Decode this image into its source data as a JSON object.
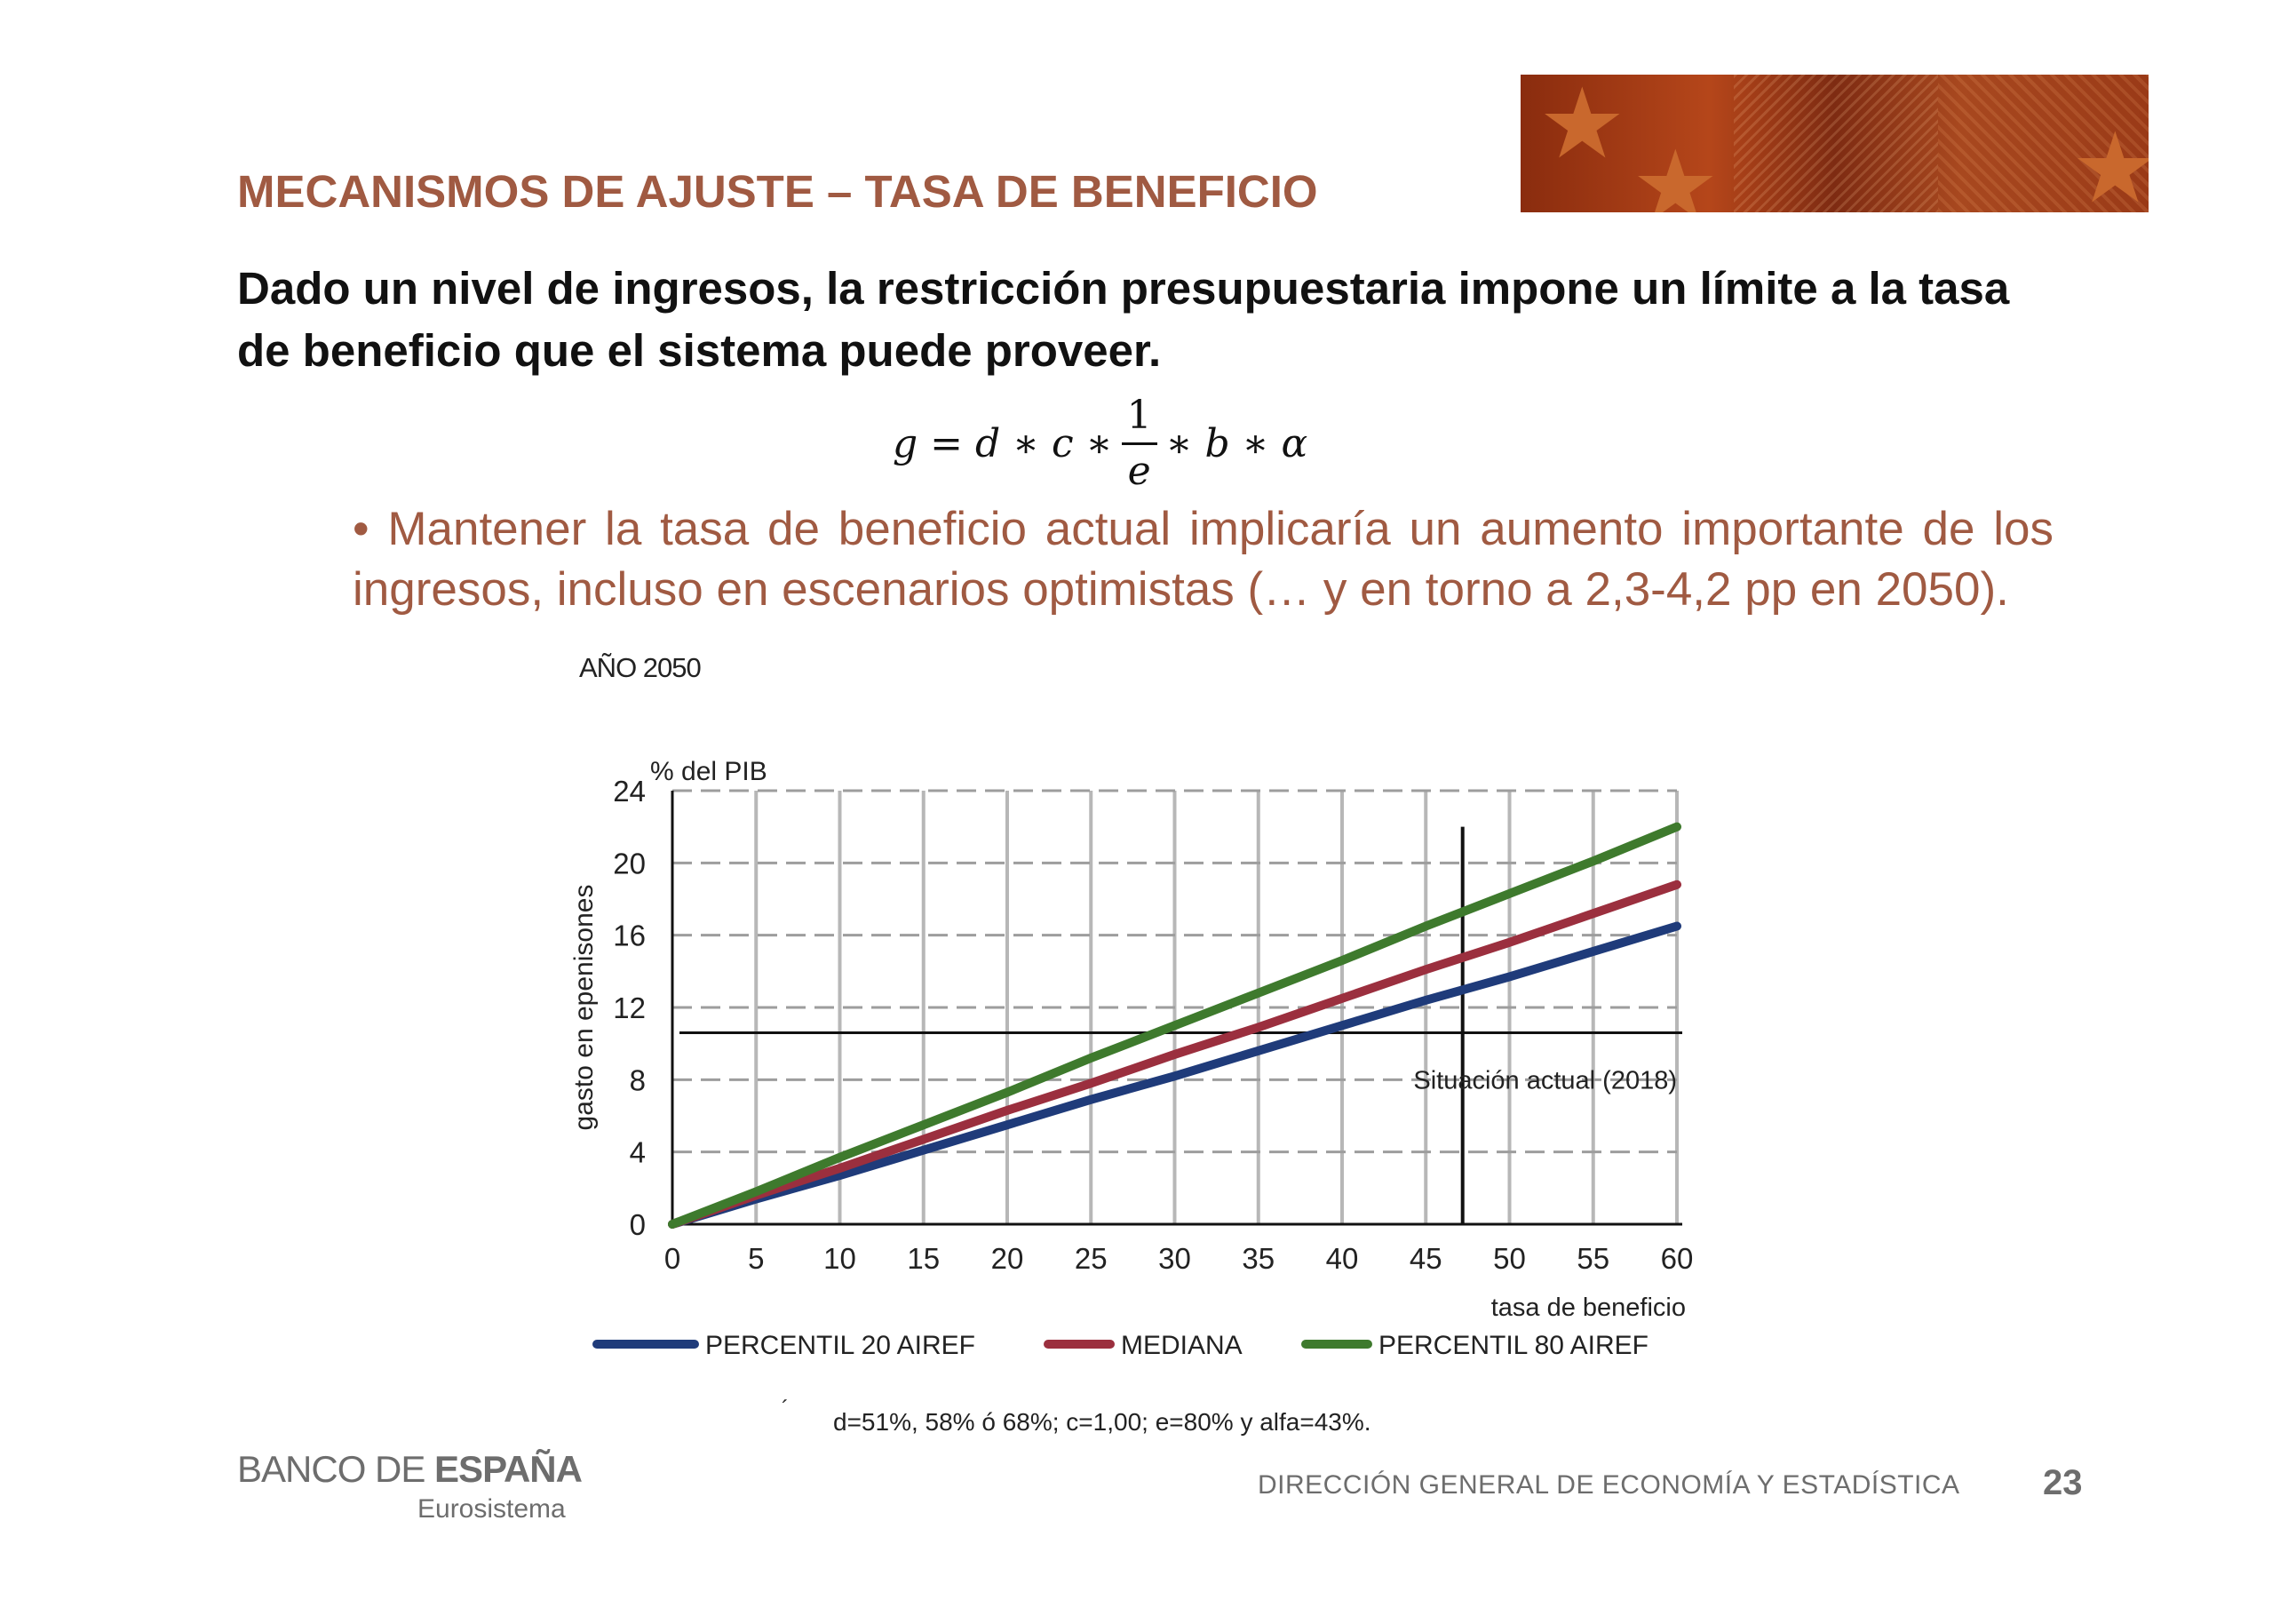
{
  "slide": {
    "title": "MECANISMOS DE AJUSTE – TASA DE BENEFICIO",
    "subtitle": "Dado un nivel de ingresos, la restricción presupuestaria impone un límite a la tasa de beneficio que el sistema puede proveer.",
    "formula": {
      "lhs": "g = d ∗ c ∗",
      "numerator": "1",
      "denominator": "e",
      "rhs": "∗ b ∗ α"
    },
    "bullet": "• Mantener la tasa de beneficio actual implicaría un aumento importante de los ingresos, incluso en escenarios optimistas (… y en torno a 2,3-4,2 pp en 2050).",
    "year_label": "AÑO 2050",
    "footnote_mark": "´",
    "footnote": "d=51%, 58% ó 68%; c=1,00; e=80% y alfa=43%.",
    "logo_main": "BANCO DE ",
    "logo_bold": "ESPAÑA",
    "logo_sub": "Eurosistema",
    "footer_dept": "DIRECCIÓN GENERAL DE ECONOMÍA Y ESTADÍSTICA",
    "page_number": "23"
  },
  "chart_data": {
    "type": "line",
    "unit_label": "% del PIB",
    "ylabel": "gasto en epenisones",
    "xlabel": "tasa de beneficio",
    "xlim": [
      0,
      60
    ],
    "ylim": [
      0,
      24
    ],
    "x_ticks": [
      0,
      5,
      10,
      15,
      20,
      25,
      30,
      35,
      40,
      45,
      50,
      55,
      60
    ],
    "y_ticks": [
      0,
      4,
      8,
      12,
      16,
      20,
      24
    ],
    "grid": true,
    "legend_position": "bottom",
    "x": [
      0,
      5,
      10,
      15,
      20,
      25,
      30,
      35,
      40,
      45,
      50,
      55,
      60
    ],
    "series": [
      {
        "name": "PERCENTIL 20 AIREF",
        "color": "#1f3b7a",
        "values": [
          0,
          1.4,
          2.7,
          4.1,
          5.5,
          6.9,
          8.2,
          9.6,
          11.0,
          12.4,
          13.7,
          15.1,
          16.5
        ]
      },
      {
        "name": "MEDIANA",
        "color": "#9b2f3e",
        "values": [
          0,
          1.6,
          3.1,
          4.7,
          6.3,
          7.8,
          9.4,
          10.9,
          12.5,
          14.1,
          15.6,
          17.2,
          18.8
        ]
      },
      {
        "name": "PERCENTIL 80 AIREF",
        "color": "#3e7a2d",
        "values": [
          0,
          1.8,
          3.7,
          5.5,
          7.3,
          9.2,
          11.0,
          12.8,
          14.6,
          16.5,
          18.3,
          20.1,
          22.0
        ]
      }
    ],
    "reference_lines": {
      "horizontal_value": 10.6,
      "vertical_value": 47.2,
      "annotation": "Situación  actual (2018)"
    }
  }
}
